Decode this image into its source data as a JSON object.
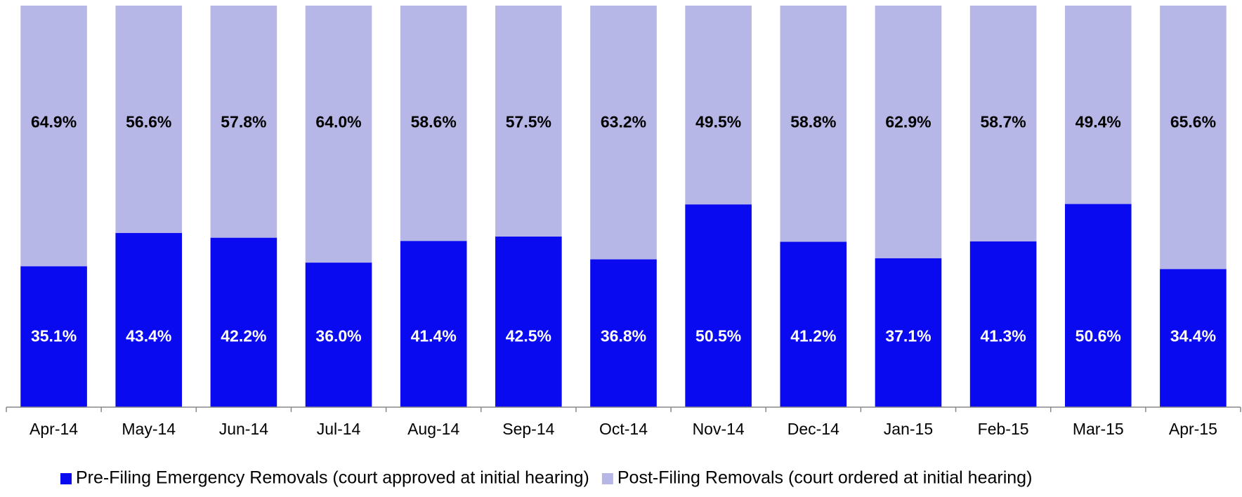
{
  "chart_data": {
    "type": "stacked_bar",
    "categories": [
      "Apr-14",
      "May-14",
      "Jun-14",
      "Jul-14",
      "Aug-14",
      "Sep-14",
      "Oct-14",
      "Nov-14",
      "Dec-14",
      "Jan-15",
      "Feb-15",
      "Mar-15",
      "Apr-15"
    ],
    "series": [
      {
        "name": "Pre-Filing Emergency Removals (court approved at initial hearing)",
        "color": "#0a0af0",
        "values": [
          35.1,
          43.4,
          42.2,
          36.0,
          41.4,
          42.5,
          36.8,
          50.5,
          41.2,
          37.1,
          41.3,
          50.6,
          34.4
        ],
        "value_labels": [
          "35.1%",
          "43.4%",
          "42.2%",
          "36.0%",
          "41.4%",
          "42.5%",
          "36.8%",
          "50.5%",
          "41.2%",
          "37.1%",
          "41.3%",
          "50.6%",
          "34.4%"
        ]
      },
      {
        "name": "Post-Filing Removals (court ordered at initial hearing)",
        "color": "#b7b7e7",
        "values": [
          64.9,
          56.6,
          57.8,
          64.0,
          58.6,
          57.5,
          63.2,
          49.5,
          58.8,
          62.9,
          58.7,
          49.4,
          65.6
        ],
        "value_labels": [
          "64.9%",
          "56.6%",
          "57.8%",
          "64.0%",
          "58.6%",
          "57.5%",
          "63.2%",
          "49.5%",
          "58.8%",
          "62.9%",
          "58.7%",
          "49.4%",
          "65.6%"
        ]
      }
    ],
    "ylim": [
      0,
      100
    ],
    "legend": "bottom"
  }
}
